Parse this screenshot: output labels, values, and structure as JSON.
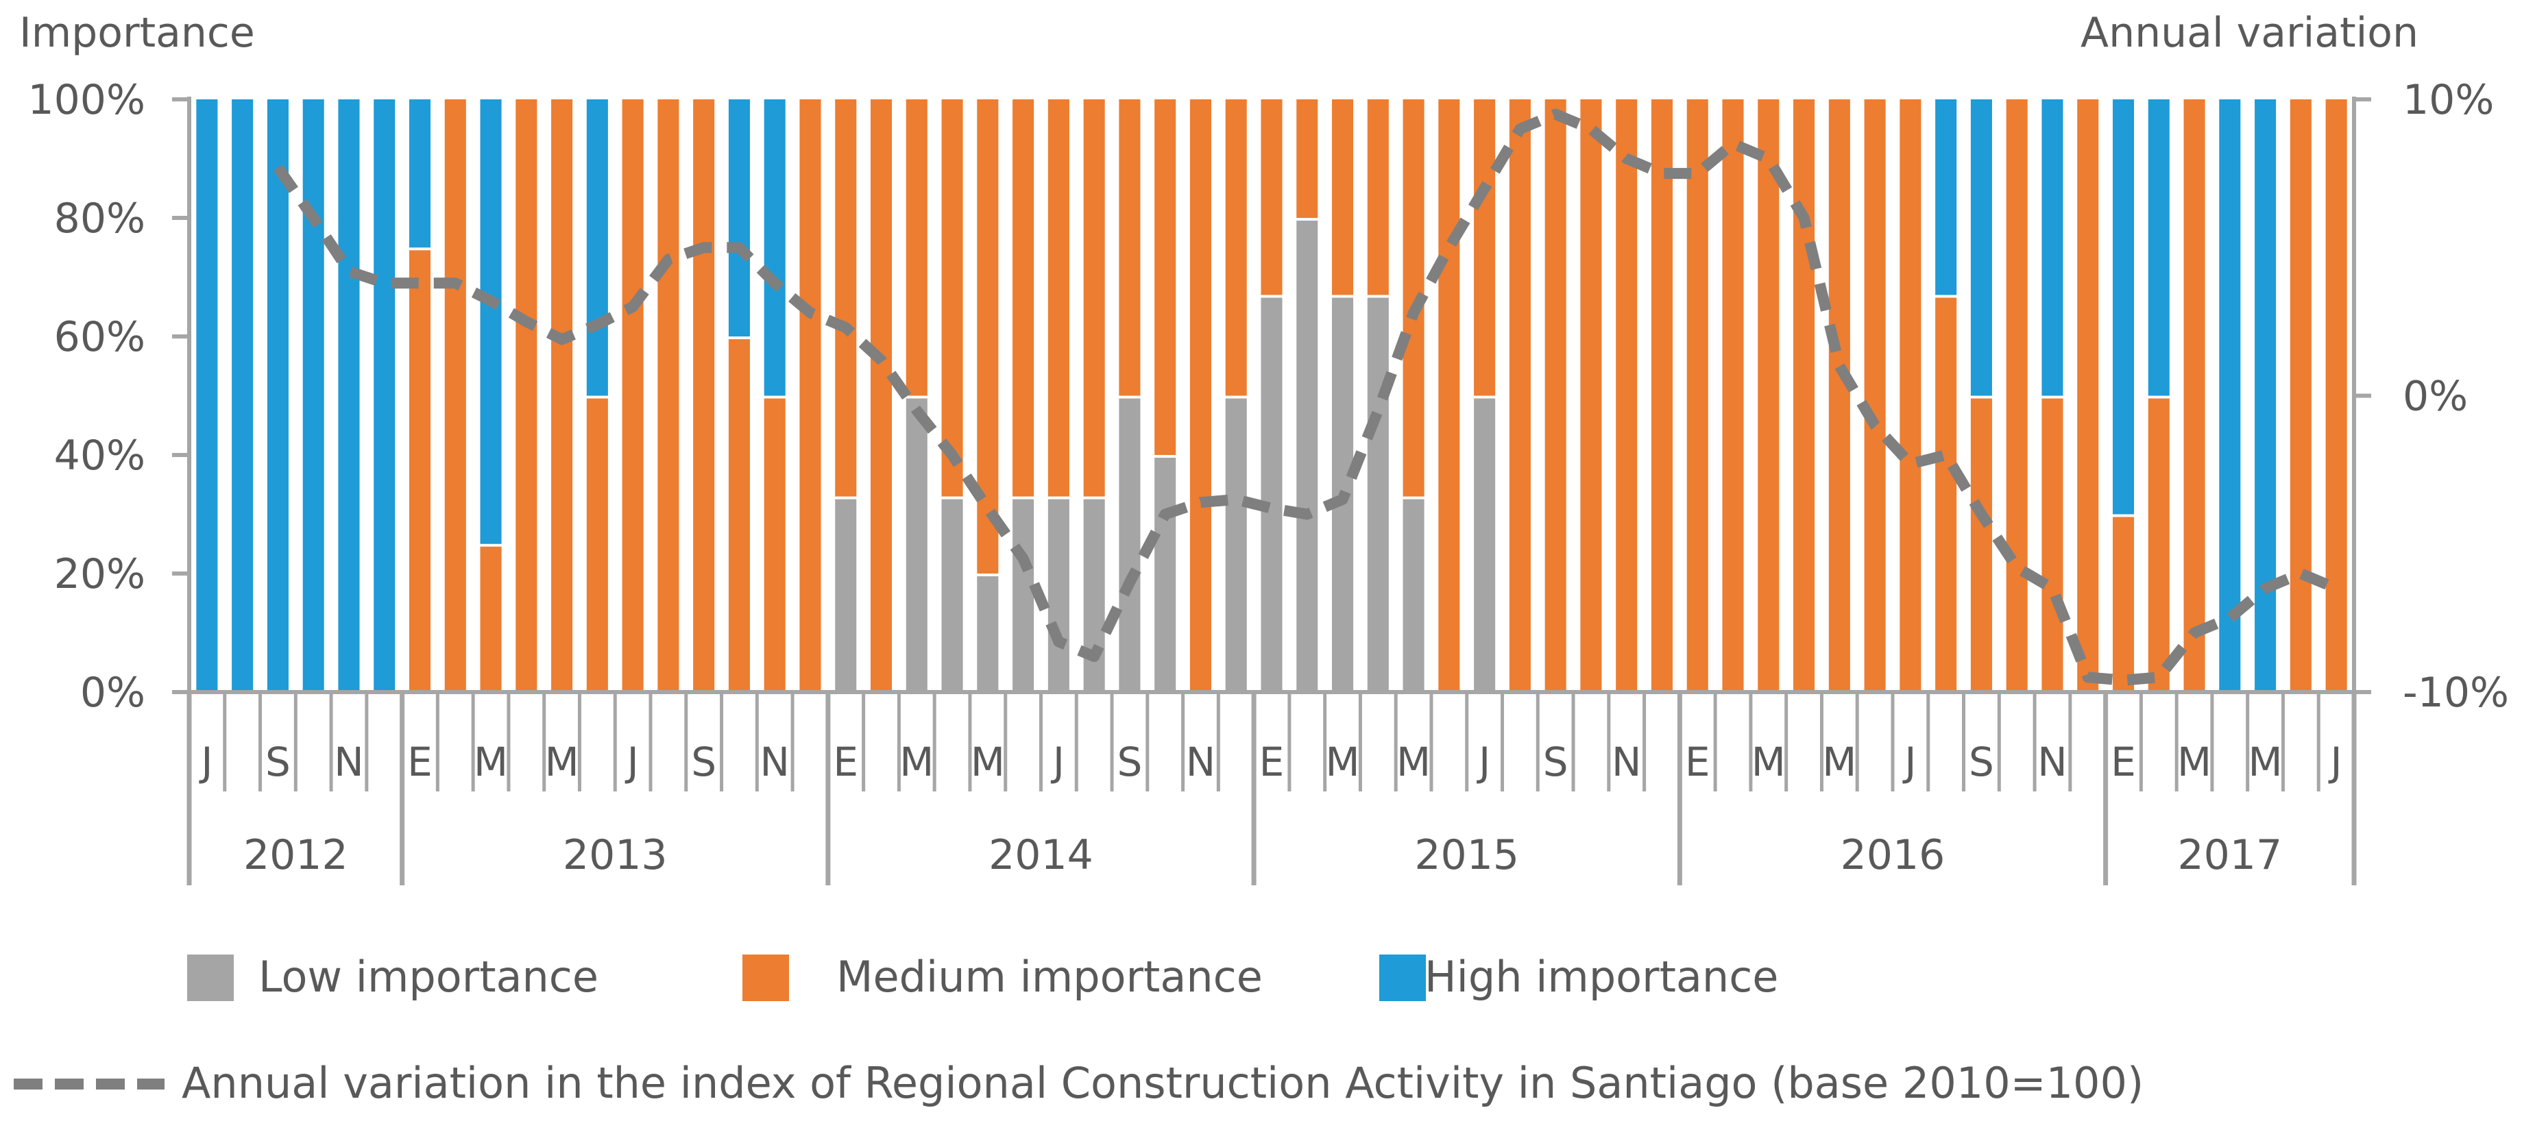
{
  "chart_data": {
    "type": "bar",
    "subtype": "100% stacked bar with line on secondary axis",
    "left_axis_title": "Importance",
    "right_axis_title": "Annual variation",
    "left_ticks": [
      "0%",
      "20%",
      "40%",
      "60%",
      "80%",
      "100%"
    ],
    "right_ticks": [
      "-10%",
      "0%",
      "10%"
    ],
    "ylim_left": [
      0,
      100
    ],
    "ylim_right": [
      -10,
      10
    ],
    "month_tick_labels": [
      "J",
      "S",
      "N",
      "E",
      "M",
      "M",
      "J",
      "S",
      "N",
      "E",
      "M",
      "M",
      "J",
      "S",
      "N",
      "E",
      "M",
      "M",
      "J",
      "S",
      "N",
      "E",
      "M",
      "M",
      "J",
      "S",
      "N",
      "E",
      "M",
      "M",
      "J"
    ],
    "years": [
      {
        "label": "2012",
        "months": 6
      },
      {
        "label": "2013",
        "months": 12
      },
      {
        "label": "2014",
        "months": 12
      },
      {
        "label": "2015",
        "months": 12
      },
      {
        "label": "2016",
        "months": 12
      },
      {
        "label": "2017",
        "months": 7
      }
    ],
    "series": [
      {
        "name": "Low importance",
        "color": "#A5A5A5",
        "values": [
          0,
          0,
          0,
          0,
          0,
          0,
          0,
          0,
          0,
          0,
          0,
          0,
          0,
          0,
          0,
          0,
          0,
          0,
          33,
          0,
          50,
          33,
          20,
          33,
          33,
          33,
          50,
          40,
          0,
          50,
          67,
          80,
          67,
          67,
          33,
          0,
          50,
          0,
          0,
          0,
          0,
          0,
          0,
          0,
          0,
          0,
          0,
          0,
          0,
          0,
          0,
          0,
          0,
          0,
          0,
          0,
          0,
          0,
          0,
          0,
          0
        ]
      },
      {
        "name": "Medium importance",
        "color": "#ED7D31",
        "values": [
          0,
          0,
          0,
          0,
          0,
          0,
          75,
          100,
          25,
          100,
          100,
          50,
          100,
          100,
          100,
          60,
          50,
          100,
          67,
          100,
          50,
          67,
          80,
          67,
          67,
          67,
          50,
          60,
          100,
          50,
          33,
          20,
          33,
          33,
          67,
          100,
          50,
          100,
          100,
          100,
          100,
          100,
          100,
          100,
          100,
          100,
          100,
          100,
          100,
          67,
          50,
          100,
          50,
          100,
          30,
          50,
          100,
          0,
          0,
          100,
          100
        ]
      },
      {
        "name": "High importance",
        "color": "#1F9BD7",
        "values": [
          100,
          100,
          100,
          100,
          100,
          100,
          25,
          0,
          75,
          0,
          0,
          50,
          0,
          0,
          0,
          40,
          50,
          0,
          0,
          0,
          0,
          0,
          0,
          0,
          0,
          0,
          0,
          0,
          0,
          0,
          0,
          0,
          0,
          0,
          0,
          0,
          0,
          0,
          0,
          0,
          0,
          0,
          0,
          0,
          0,
          0,
          0,
          0,
          0,
          33,
          50,
          0,
          50,
          0,
          70,
          50,
          0,
          100,
          100,
          0,
          0
        ]
      }
    ],
    "line": {
      "name": "Annual variation in the index of Regional Construction Activity in Santiago (base 2010=100)",
      "axis": "right",
      "color": "#7F7F7F",
      "values": [
        null,
        null,
        7.7,
        6,
        4.2,
        3.8,
        3.8,
        3.8,
        3.2,
        2.5,
        1.9,
        2.4,
        3,
        4.6,
        5,
        5,
        3.8,
        2.8,
        2.3,
        1.2,
        -0.5,
        -2,
        -3.8,
        -5.5,
        -8.3,
        -8.8,
        -6.3,
        -4,
        -3.6,
        -3.5,
        -3.8,
        -4,
        -3.5,
        -0.5,
        2.8,
        5,
        7,
        9,
        9.5,
        9,
        8,
        7.5,
        7.5,
        8.5,
        8,
        6,
        1,
        -1,
        -2.3,
        -2,
        -4,
        -5.8,
        -6.5,
        -9.5,
        -9.6,
        -9.5,
        -8,
        -7.5,
        -6.5,
        -6,
        -6.5
      ]
    },
    "legend": [
      "Low importance",
      "Medium importance",
      "High importance"
    ]
  }
}
